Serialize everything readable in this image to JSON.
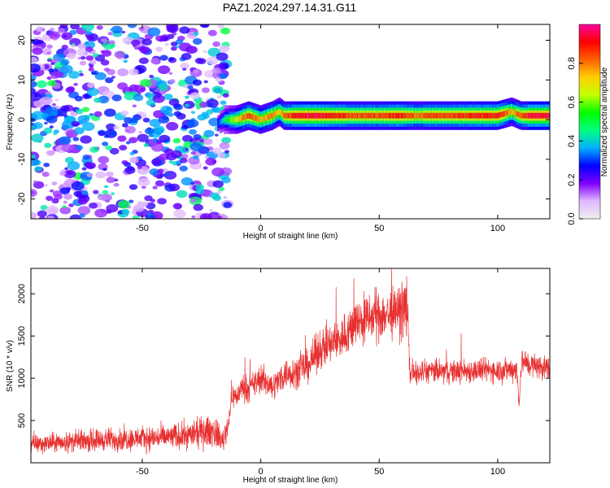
{
  "title": "PAZ1.2024.297.14.31.G11",
  "colors": {
    "snr_line": "#e83030",
    "colorbar_stops": [
      "#f0f0f0",
      "#e0b8ff",
      "#8000ff",
      "#0000ff",
      "#00b0ff",
      "#00ff80",
      "#00ff00",
      "#c0ff00",
      "#ffd000",
      "#ff6000",
      "#ff0000",
      "#ff00a0"
    ]
  },
  "chart_data": [
    {
      "type": "heatmap",
      "xlabel": "Height of straight line (km)",
      "ylabel": "Frequency (Hz)",
      "xlim": [
        -97,
        122
      ],
      "ylim": [
        -25,
        24
      ],
      "xticks": [
        -50,
        0,
        50,
        100
      ],
      "xtick_labels": [
        "-50",
        "0",
        "50",
        "100"
      ],
      "yticks": [
        20,
        10,
        0,
        -10,
        -20
      ],
      "ytick_labels": [
        "20",
        "10",
        "0",
        "-10",
        "-20"
      ],
      "colorbar": {
        "label": "Normalized spectral amplitude",
        "range": [
          0,
          1
        ],
        "ticks": [
          0.0,
          0.2,
          0.4,
          0.6,
          0.8
        ],
        "tick_labels": [
          "0.0",
          "0.2",
          "0.4",
          "0.6",
          "0.8"
        ]
      },
      "ridge": {
        "x": [
          -18,
          -15,
          -10,
          -5,
          0,
          5,
          8,
          10,
          15,
          20,
          30,
          40,
          50,
          60,
          66,
          70,
          80,
          90,
          100,
          106,
          110,
          115,
          122
        ],
        "freq": [
          -1,
          0,
          0,
          1,
          0,
          1,
          2,
          1,
          1,
          1,
          1,
          1,
          1,
          1,
          1,
          1,
          1,
          1,
          1,
          2,
          1,
          1,
          1
        ],
        "amp": [
          0.3,
          0.45,
          0.7,
          0.85,
          0.75,
          0.8,
          0.7,
          0.8,
          0.92,
          0.95,
          0.9,
          0.85,
          0.85,
          0.9,
          0.8,
          0.85,
          0.85,
          0.9,
          0.9,
          0.75,
          0.85,
          0.95,
          0.95
        ]
      },
      "noise_region_x": [
        -97,
        -17
      ]
    },
    {
      "type": "line",
      "xlabel": "Height of straight line (km)",
      "ylabel": "SNR (10 * v/v)",
      "xlim": [
        -97,
        122
      ],
      "ylim": [
        0,
        2300
      ],
      "xticks": [
        -50,
        0,
        50,
        100
      ],
      "xtick_labels": [
        "-50",
        "0",
        "50",
        "100"
      ],
      "yticks": [
        500,
        1000,
        1500,
        2000
      ],
      "ytick_labels": [
        "500",
        "1000",
        "1500",
        "2000"
      ],
      "series": [
        {
          "x": [
            -97,
            -90,
            -80,
            -70,
            -60,
            -50,
            -40,
            -30,
            -25,
            -20,
            -16,
            -14,
            -12,
            -10,
            -8,
            -5,
            0,
            5,
            10,
            15,
            20,
            25,
            30,
            35,
            40,
            45,
            50,
            55,
            58,
            60,
            61,
            62,
            63,
            65,
            70,
            80,
            90,
            100,
            105,
            108,
            109,
            110,
            115,
            122
          ],
          "y": [
            220,
            230,
            250,
            270,
            280,
            290,
            300,
            330,
            360,
            380,
            260,
            420,
            800,
            780,
            900,
            870,
            1000,
            900,
            1050,
            1080,
            1150,
            1350,
            1400,
            1500,
            1650,
            1700,
            1750,
            1760,
            1780,
            1820,
            1860,
            1750,
            1050,
            1050,
            1080,
            1080,
            1090,
            1100,
            1100,
            1120,
            700,
            1200,
            1150,
            1120
          ]
        }
      ]
    }
  ]
}
